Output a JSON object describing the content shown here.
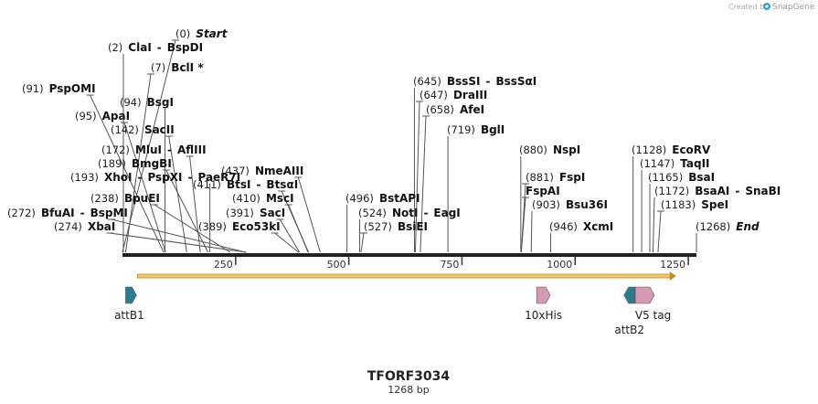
{
  "credit": {
    "created_by": "Created by",
    "brand": "SnapGene",
    "brand_color": "#3aa0c8"
  },
  "map": {
    "title": "TFORF3034",
    "length_label": "1268 bp",
    "length": 1268,
    "backbone_color": "#222222",
    "ticks": [
      {
        "value": 250,
        "label": "250"
      },
      {
        "value": 500,
        "label": "500"
      },
      {
        "value": 750,
        "label": "750"
      },
      {
        "value": 1000,
        "label": "1000"
      },
      {
        "value": 1250,
        "label": "1250"
      }
    ],
    "orf": {
      "start": 33,
      "end": 1223,
      "color": "#f3c66b",
      "edge_color": "#c58a1f"
    },
    "sites": [
      {
        "position": 0,
        "label": "(0)",
        "names": [
          "Start"
        ],
        "style": "italic"
      },
      {
        "position": 2,
        "label": "(2)",
        "names": [
          "ClaI",
          "BspDI"
        ]
      },
      {
        "position": 7,
        "label": "(7)",
        "names": [
          "BclI *"
        ]
      },
      {
        "position": 91,
        "label": "(91)",
        "names": [
          "PspOMI"
        ]
      },
      {
        "position": 94,
        "label": "(94)",
        "names": [
          "BsgI"
        ]
      },
      {
        "position": 95,
        "label": "(95)",
        "names": [
          "ApaI"
        ]
      },
      {
        "position": 142,
        "label": "(142)",
        "names": [
          "SacII"
        ]
      },
      {
        "position": 172,
        "label": "(172)",
        "names": [
          "MluI",
          "AflIII"
        ]
      },
      {
        "position": 189,
        "label": "(189)",
        "names": [
          "BmgBI"
        ]
      },
      {
        "position": 193,
        "label": "(193)",
        "names": [
          "XhoI",
          "PspXI",
          "PaeR7I"
        ]
      },
      {
        "position": 238,
        "label": "(238)",
        "names": [
          "BpuEI"
        ]
      },
      {
        "position": 272,
        "label": "(272)",
        "names": [
          "BfuAI",
          "BspMI"
        ]
      },
      {
        "position": 274,
        "label": "(274)",
        "names": [
          "XbaI"
        ]
      },
      {
        "position": 389,
        "label": "(389)",
        "names": [
          "Eco53kI"
        ]
      },
      {
        "position": 391,
        "label": "(391)",
        "names": [
          "SacI"
        ]
      },
      {
        "position": 410,
        "label": "(410)",
        "names": [
          "MscI"
        ]
      },
      {
        "position": 411,
        "label": "(411)",
        "names": [
          "BtsI",
          "BtsαI"
        ]
      },
      {
        "position": 437,
        "label": "(437)",
        "names": [
          "NmeAIII"
        ]
      },
      {
        "position": 496,
        "label": "(496)",
        "names": [
          "BstAPI"
        ]
      },
      {
        "position": 524,
        "label": "(524)",
        "names": [
          "NotI",
          "EagI"
        ]
      },
      {
        "position": 527,
        "label": "(527)",
        "names": [
          "BsiEI"
        ]
      },
      {
        "position": 645,
        "label": "(645)",
        "names": [
          "BssSI",
          "BssSαI"
        ]
      },
      {
        "position": 647,
        "label": "(647)",
        "names": [
          "DraIII"
        ]
      },
      {
        "position": 658,
        "label": "(658)",
        "names": [
          "AfeI"
        ]
      },
      {
        "position": 719,
        "label": "(719)",
        "names": [
          "BglI"
        ]
      },
      {
        "position": 880,
        "label": "(880)",
        "names": [
          "NspI"
        ]
      },
      {
        "position": 881,
        "label": "(881)",
        "names": [
          "FspI"
        ]
      },
      {
        "position": 881,
        "label": "",
        "names": [
          "FspAI"
        ]
      },
      {
        "position": 903,
        "label": "(903)",
        "names": [
          "Bsu36I"
        ]
      },
      {
        "position": 946,
        "label": "(946)",
        "names": [
          "XcmI"
        ]
      },
      {
        "position": 1128,
        "label": "(1128)",
        "names": [
          "EcoRV"
        ]
      },
      {
        "position": 1147,
        "label": "(1147)",
        "names": [
          "TaqII"
        ]
      },
      {
        "position": 1165,
        "label": "(1165)",
        "names": [
          "BsaI"
        ]
      },
      {
        "position": 1172,
        "label": "(1172)",
        "names": [
          "BsaAI",
          "SnaBI"
        ]
      },
      {
        "position": 1183,
        "label": "(1183)",
        "names": [
          "SpeI"
        ]
      },
      {
        "position": 1268,
        "label": "(1268)",
        "names": [
          "End"
        ],
        "style": "italic"
      }
    ],
    "features": [
      {
        "name": "attB1",
        "start": 7,
        "end": 31,
        "strand": 1,
        "color": "#2b7c8e"
      },
      {
        "name": "10xHis",
        "start": 915,
        "end": 945,
        "strand": 1,
        "color": "#d49ab5"
      },
      {
        "name": "attB2",
        "start": 1108,
        "end": 1132,
        "strand": -1,
        "color": "#2b7c8e"
      },
      {
        "name": "V5 tag",
        "start": 1133,
        "end": 1175,
        "strand": 1,
        "color": "#d49ab5"
      }
    ]
  }
}
